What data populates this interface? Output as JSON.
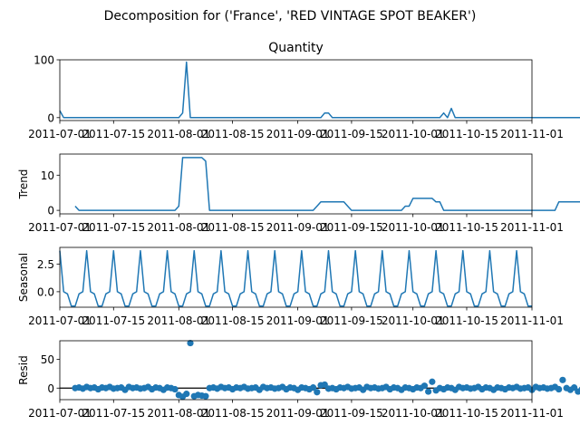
{
  "figure": {
    "suptitle": "Decomposition for ('France', 'RED VINTAGE SPOT BEAKER')"
  },
  "colors": {
    "series": "#1f77b4",
    "axis": "#000000",
    "zero_line": "#000000"
  },
  "chart_data": [
    {
      "type": "line",
      "title": "Quantity",
      "ylabel": "",
      "x_start": "2011-07-01",
      "x_end": "2011-11-01",
      "xticks": [
        "2011-07-01",
        "2011-07-15",
        "2011-08-01",
        "2011-08-15",
        "2011-09-01",
        "2011-09-15",
        "2011-10-01",
        "2011-10-15",
        "2011-11-01"
      ],
      "ylim": [
        -5,
        100
      ],
      "yticks": [
        0,
        100
      ],
      "values": [
        12,
        0,
        0,
        0,
        0,
        0,
        0,
        0,
        0,
        0,
        0,
        0,
        0,
        0,
        0,
        0,
        0,
        0,
        0,
        0,
        0,
        0,
        0,
        0,
        0,
        0,
        0,
        0,
        0,
        0,
        0,
        0,
        8,
        96,
        0,
        0,
        0,
        0,
        0,
        0,
        0,
        0,
        0,
        0,
        0,
        0,
        0,
        0,
        0,
        0,
        0,
        0,
        0,
        0,
        0,
        0,
        0,
        0,
        0,
        0,
        0,
        0,
        0,
        0,
        0,
        0,
        0,
        0,
        0,
        8,
        8,
        0,
        0,
        0,
        0,
        0,
        0,
        0,
        0,
        0,
        0,
        0,
        0,
        0,
        0,
        0,
        0,
        0,
        0,
        0,
        0,
        0,
        0,
        0,
        0,
        0,
        0,
        0,
        0,
        0,
        8,
        0,
        16,
        0,
        0,
        0,
        0,
        0,
        0,
        0,
        0,
        0,
        0,
        0,
        0,
        0,
        0,
        0,
        0,
        0,
        0,
        0,
        0,
        0,
        0,
        0,
        0,
        0,
        0,
        0,
        0,
        0,
        0,
        0,
        0,
        0,
        0,
        0,
        0,
        0,
        0,
        0,
        0,
        0,
        0,
        0,
        0,
        0,
        0,
        0,
        0,
        0,
        0,
        0,
        0,
        0,
        0,
        0,
        0,
        0,
        0,
        16,
        0,
        0,
        0,
        0,
        0,
        0,
        0,
        0,
        0,
        0,
        0,
        0,
        0,
        0,
        0,
        0,
        0,
        0,
        0,
        0,
        0,
        0,
        0,
        0,
        0,
        0,
        0,
        0,
        0,
        0,
        0,
        0,
        0,
        0,
        0,
        0,
        0,
        0,
        0,
        0,
        0,
        0,
        0,
        0,
        0,
        0,
        0,
        0,
        0,
        0,
        0,
        8,
        8,
        0,
        0,
        0,
        0,
        0,
        0,
        0,
        0,
        0,
        0,
        0,
        0,
        0,
        0,
        0,
        0,
        0,
        0,
        0,
        0,
        0,
        0,
        0,
        0,
        0,
        0,
        0,
        0,
        0,
        0,
        0,
        0,
        0,
        0,
        0,
        0,
        0,
        0,
        0,
        0,
        0,
        0,
        0,
        0,
        0,
        0,
        16,
        0,
        0,
        0,
        0,
        0,
        0,
        0,
        0,
        0,
        0,
        0,
        0,
        0,
        0,
        0,
        0,
        0,
        0,
        0,
        0,
        0,
        0,
        0,
        0,
        0,
        0,
        0,
        0,
        0,
        0,
        0,
        0,
        0,
        0,
        0,
        0,
        0,
        0,
        0,
        0,
        0,
        0,
        0,
        0,
        0,
        0,
        0,
        0,
        0,
        0,
        0,
        0,
        0,
        0,
        5
      ]
    },
    {
      "type": "line",
      "title": "",
      "ylabel": "Trend",
      "x_start": "2011-07-01",
      "x_end": "2011-11-01",
      "xticks": [
        "2011-07-01",
        "2011-07-15",
        "2011-08-01",
        "2011-08-15",
        "2011-09-01",
        "2011-09-15",
        "2011-10-01",
        "2011-10-15",
        "2011-11-01"
      ],
      "ylim": [
        -1,
        16
      ],
      "yticks": [
        0,
        10
      ],
      "values": [
        null,
        null,
        null,
        null,
        1.2,
        0,
        0,
        0,
        0,
        0,
        0,
        0,
        0,
        0,
        0,
        0,
        0,
        0,
        0,
        0,
        0,
        0,
        0,
        0,
        0,
        0,
        0,
        0,
        0,
        0,
        0,
        1.2,
        15,
        15,
        15,
        15,
        15,
        15,
        14,
        0,
        0,
        0,
        0,
        0,
        0,
        0,
        0,
        0,
        0,
        0,
        0,
        0,
        0,
        0,
        0,
        0,
        0,
        0,
        0,
        0,
        0,
        0,
        0,
        0,
        0,
        0,
        0,
        1.2,
        2.4,
        2.4,
        2.4,
        2.4,
        2.4,
        2.4,
        2.4,
        1.2,
        0,
        0,
        0,
        0,
        0,
        0,
        0,
        0,
        0,
        0,
        0,
        0,
        0,
        0,
        1.2,
        1.2,
        3.4,
        3.4,
        3.4,
        3.4,
        3.4,
        3.4,
        2.4,
        2.4,
        0,
        0,
        0,
        0,
        0,
        0,
        0,
        0,
        0,
        0,
        0,
        0,
        0,
        0,
        0,
        0,
        0,
        0,
        0,
        0,
        0,
        0,
        0,
        0,
        0,
        0,
        0,
        0,
        0,
        0,
        2.4,
        2.4,
        2.4,
        2.4,
        2.4,
        2.4,
        2.4,
        2.4,
        0,
        0,
        0,
        0,
        0,
        0,
        0,
        0,
        0,
        0,
        0,
        0,
        0,
        0,
        0,
        0,
        0,
        0,
        0,
        0,
        0,
        0,
        2.4,
        2.4,
        2.4,
        2.4,
        2.4,
        2.4,
        2.4,
        2.4,
        1.2,
        0,
        0,
        0,
        0,
        0,
        0,
        0,
        0,
        0,
        0,
        0,
        0,
        0,
        0,
        0,
        0,
        2.4,
        2.4,
        2.4,
        2.4,
        2.4,
        2.4,
        2.4,
        3.6,
        null,
        null,
        null
      ]
    },
    {
      "type": "line",
      "title": "",
      "ylabel": "Seasonal",
      "x_start": "2011-07-01",
      "x_end": "2011-11-01",
      "xticks": [
        "2011-07-01",
        "2011-07-15",
        "2011-08-01",
        "2011-08-15",
        "2011-09-01",
        "2011-09-15",
        "2011-10-01",
        "2011-10-15",
        "2011-11-01"
      ],
      "ylim": [
        -1.4,
        4.0
      ],
      "yticks": [
        0.0,
        2.5
      ],
      "tick_labels": [
        "0.0",
        "2.5"
      ],
      "period": 7,
      "pattern": [
        0,
        -0.2,
        -1.3,
        -1.3,
        -0.2,
        0,
        3.7
      ],
      "phase": 6
    },
    {
      "type": "scatter",
      "title": "",
      "ylabel": "Resid",
      "x_start": "2011-07-01",
      "x_end": "2011-11-01",
      "xticks": [
        "2011-07-01",
        "2011-07-15",
        "2011-08-01",
        "2011-08-15",
        "2011-09-01",
        "2011-09-15",
        "2011-10-01",
        "2011-10-15",
        "2011-11-01"
      ],
      "ylim": [
        -20,
        82
      ],
      "yticks": [
        0,
        50
      ],
      "zero_line": true,
      "values": [
        null,
        null,
        null,
        null,
        0,
        1,
        -1,
        2,
        0,
        1,
        -2,
        1,
        0,
        2,
        -1,
        0,
        1,
        -3,
        2,
        0,
        1,
        -1,
        0,
        2,
        -2,
        1,
        0,
        -3,
        1,
        0,
        -2,
        -12,
        -15,
        -10,
        78,
        -14,
        -12,
        -13,
        -14,
        0,
        1,
        -1,
        2,
        0,
        1,
        -2,
        1,
        0,
        2,
        -1,
        0,
        1,
        -3,
        2,
        0,
        1,
        -1,
        0,
        2,
        -2,
        1,
        0,
        -3,
        1,
        0,
        -2,
        1,
        -7,
        5,
        6,
        -1,
        0,
        -2,
        1,
        0,
        2,
        -1,
        0,
        1,
        -3,
        2,
        0,
        1,
        -1,
        0,
        2,
        -2,
        1,
        0,
        -3,
        1,
        0,
        -2,
        1,
        0,
        4,
        -6,
        11,
        -4,
        0,
        -2,
        1,
        0,
        -3,
        2,
        0,
        1,
        -1,
        0,
        2,
        -2,
        1,
        0,
        -3,
        1,
        0,
        -2,
        1,
        0,
        2,
        -1,
        0,
        1,
        -3,
        2,
        0,
        1,
        -1,
        0,
        2,
        -2,
        14,
        0,
        -3,
        1,
        -6,
        -2,
        1,
        0,
        2,
        -1,
        0,
        1,
        -3,
        2,
        0,
        1,
        -1,
        0,
        2,
        -2,
        1,
        0,
        -3,
        1,
        0,
        -2,
        1,
        0,
        2,
        -1,
        0,
        1,
        -3,
        2,
        0,
        1,
        -1,
        0,
        2,
        -2,
        1,
        0,
        -3,
        5,
        6,
        -7,
        1,
        0,
        2,
        -1,
        0,
        1,
        -3,
        2,
        0,
        1,
        -1,
        0,
        2,
        -2,
        1,
        0,
        -3,
        1,
        0,
        -2,
        1,
        0,
        2,
        -1,
        -5,
        1,
        -3,
        13,
        0,
        1,
        -2,
        null,
        null,
        null
      ]
    }
  ]
}
